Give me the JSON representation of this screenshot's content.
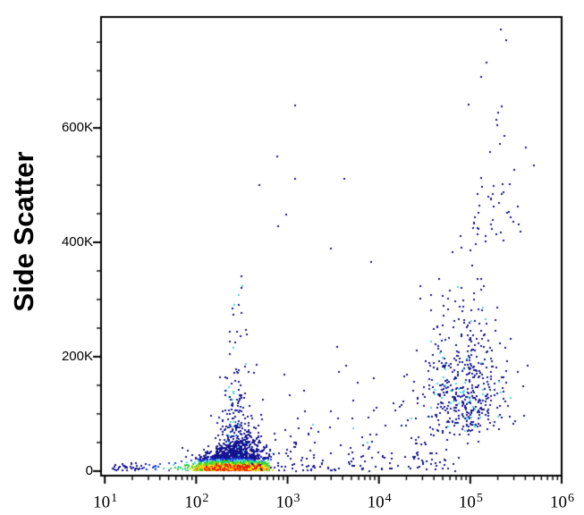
{
  "figure": {
    "kind": "flow-cytometry-pseudocolor-dot-plot"
  },
  "chart_data": {
    "type": "scatter",
    "title": "",
    "xlabel": "",
    "ylabel": "Side Scatter",
    "x_scale": "log",
    "x_range": [
      9.1,
      1000000
    ],
    "y_range": [
      -8000,
      794000
    ],
    "grid": false,
    "legend": null,
    "seed": 42,
    "x_ticks": {
      "major": [
        10,
        100,
        1000,
        10000,
        100000,
        1000000
      ],
      "labels": [
        {
          "base": "10",
          "exp": "1"
        },
        {
          "base": "10",
          "exp": "2"
        },
        {
          "base": "10",
          "exp": "3"
        },
        {
          "base": "10",
          "exp": "4"
        },
        {
          "base": "10",
          "exp": "5"
        },
        {
          "base": "10",
          "exp": "6"
        }
      ],
      "minor_multipliers": [
        2,
        3,
        4,
        5,
        6,
        7,
        8,
        9
      ]
    },
    "y_ticks": {
      "major": [
        0,
        200000,
        400000,
        600000
      ],
      "labels": [
        "0",
        "200K",
        "400K",
        "600K"
      ],
      "minor_step": 50000,
      "minor_max": 750000
    },
    "style": {
      "background": "#ffffff",
      "axis_color": "#000000",
      "dot_size": 2,
      "palette": {
        "navy": "#14148f",
        "blue": "#2336e0",
        "cyan": "#49d7e2",
        "green": "#2ecf35",
        "yellowgreen": "#97dd22",
        "yellow": "#f0e418",
        "orange": "#ff8d0e",
        "red": "#f11c00"
      }
    },
    "density": {
      "cx": 2.42,
      "sx": 0.6,
      "cy": 5500,
      "sy": 10500,
      "thresholds": [
        0.3,
        0.44,
        0.56,
        0.7,
        0.79,
        0.87,
        0.93
      ],
      "colors": [
        "navy",
        "blue",
        "cyan",
        "green",
        "yellowgreen",
        "yellow",
        "orange",
        "red"
      ]
    },
    "populations": [
      {
        "name": "main-dense-core",
        "n": 3900,
        "logx": {
          "dist": "normal",
          "mean": 2.4,
          "sd": 0.17,
          "min": 1.12,
          "max": 2.8
        },
        "y": {
          "dist": "halfnormal",
          "offset": 600,
          "scale": 9000,
          "pow": 1.3,
          "max": 88000
        },
        "color": "density"
      },
      {
        "name": "main-upper-halo",
        "n": 650,
        "logx": {
          "dist": "normal",
          "mean": 2.44,
          "sd": 0.16,
          "min": 1.5,
          "max": 2.85
        },
        "y": {
          "dist": "halfnormal",
          "offset": 2000,
          "scale": 26000,
          "pow": 1,
          "max": 92000
        },
        "color": "density"
      },
      {
        "name": "left-bottom-tail",
        "n": 60,
        "logx": {
          "dist": "uniform",
          "min": 1.08,
          "max": 1.95
        },
        "y": {
          "dist": "halfnormal",
          "offset": 500,
          "scale": 7000,
          "pow": 1,
          "max": 30000
        },
        "color": "density"
      },
      {
        "name": "plume-above-main",
        "n": 220,
        "logx": {
          "dist": "normal",
          "mean": 2.45,
          "sd": 0.09,
          "min": 2.1,
          "max": 2.8
        },
        "y": {
          "dist": "exp",
          "offset": 28000,
          "mean": 78000,
          "max": 375000
        },
        "colors": {
          "navy": 0.93,
          "cyan": 0.07
        }
      },
      {
        "name": "mid-field-scatter",
        "n": 150,
        "logx": {
          "dist": "uniform",
          "min": 2.55,
          "max": 4.75
        },
        "y": {
          "dist": "halfnormal",
          "offset": 1500,
          "scale": 70000,
          "pow": 1,
          "max": 460000
        },
        "colors": {
          "navy": 0.96,
          "cyan": 0.04
        }
      },
      {
        "name": "bottom-mid-sparse",
        "n": 65,
        "logx": {
          "dist": "uniform",
          "min": 2.85,
          "max": 4.9
        },
        "y": {
          "dist": "halfnormal",
          "offset": 300,
          "scale": 13000,
          "pow": 1,
          "max": 50000
        },
        "colors": {
          "navy": 1.0
        }
      },
      {
        "name": "right-population",
        "n": 500,
        "logx": {
          "dist": "normal",
          "mean": 4.93,
          "sd": 0.23,
          "min": 4.25,
          "max": 5.8
        },
        "y": {
          "dist": "lognormal",
          "mu": 11.9,
          "sigma": 0.4,
          "min": 32000,
          "max": 470000
        },
        "colors": {
          "navy": 0.9,
          "cyan": 0.1
        }
      },
      {
        "name": "right-high-tail",
        "n": 48,
        "logx": {
          "dist": "normal",
          "mean": 5.28,
          "sd": 0.17,
          "min": 4.6,
          "max": 5.75
        },
        "y": {
          "dist": "halfnormal",
          "offset": 400000,
          "scale": 140000,
          "pow": 1,
          "max": 780000
        },
        "colors": {
          "navy": 1.0
        }
      }
    ],
    "outliers": [
      [
        1210,
        639000
      ],
      [
        770,
        550000
      ],
      [
        490,
        500000
      ],
      [
        1220,
        511000
      ],
      [
        4200,
        511000
      ],
      [
        970,
        448000
      ],
      [
        790,
        428000
      ],
      [
        3000,
        389000
      ],
      [
        8200,
        366000
      ],
      [
        215000,
        772000
      ],
      [
        247000,
        753000
      ],
      [
        150000,
        714000
      ],
      [
        131000,
        690000
      ]
    ]
  }
}
